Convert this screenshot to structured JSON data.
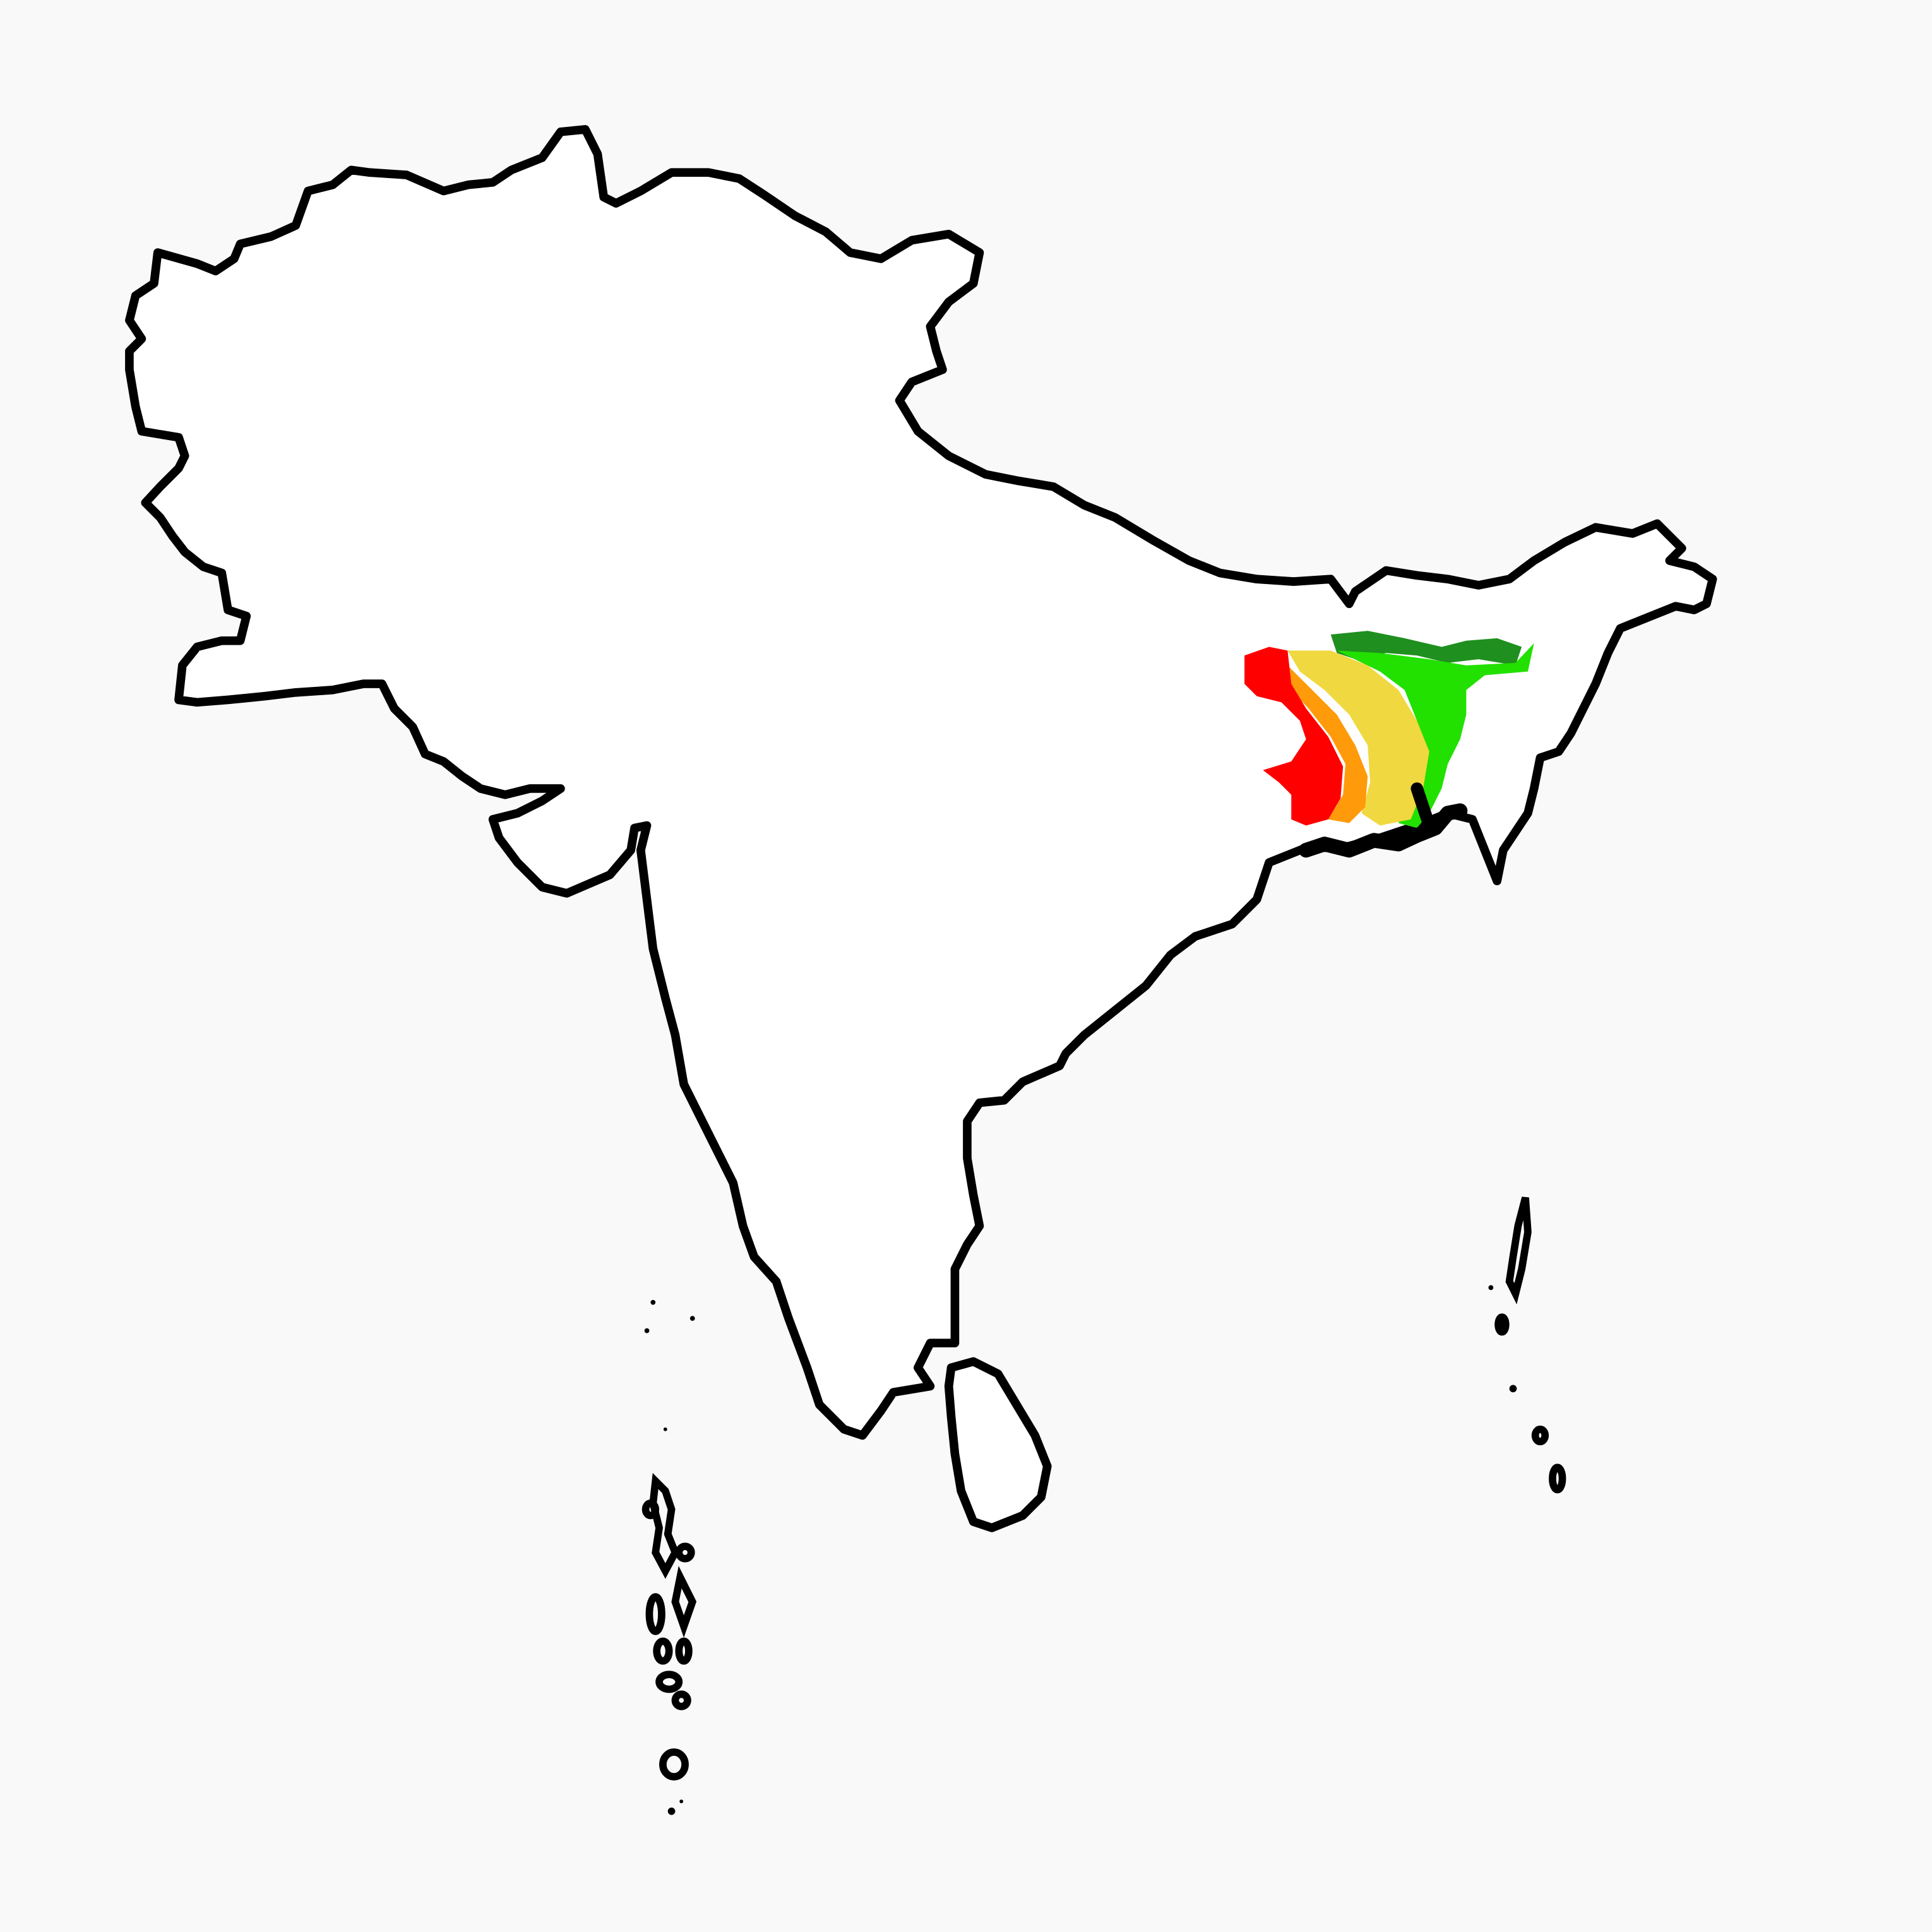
{
  "map": {
    "background_color": "#f9f9f9",
    "outline_color": "#000000",
    "land_color": "#ffffff",
    "legend": null
  },
  "overlay": {
    "type": "heatmap",
    "description_free_bands": [
      {
        "band": "dark-green",
        "color": "#1f8f1f"
      },
      {
        "band": "bright-green",
        "color": "#22e000"
      },
      {
        "band": "yellow",
        "color": "#f0d840"
      },
      {
        "band": "orange",
        "color": "#ff9a0a"
      },
      {
        "band": "red",
        "color": "#ff0000"
      }
    ]
  }
}
